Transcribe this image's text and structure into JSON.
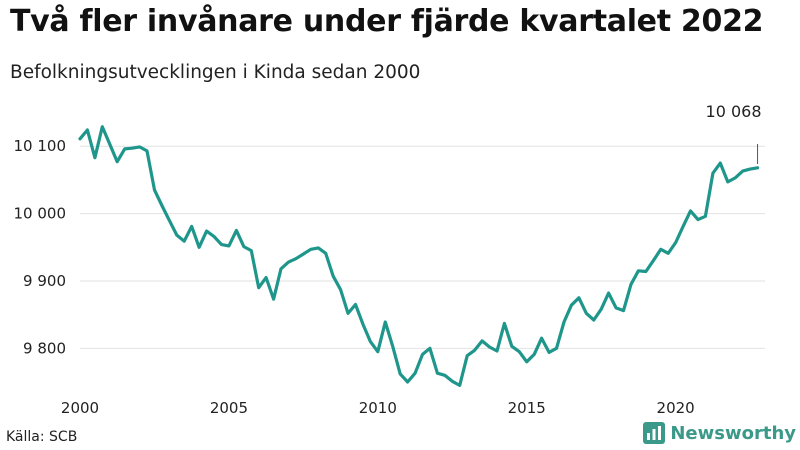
{
  "title": "Två fler invånare under fjärde kvartalet 2022",
  "subtitle": "Befolkningsutvecklingen i Kinda sedan 2000",
  "source": "Källa: SCB",
  "brand": {
    "name": "Newsworthy"
  },
  "colors": {
    "line": "#1f968b",
    "grid": "#e2e2e2",
    "brand": "#3a9988"
  },
  "chart_data": {
    "type": "line",
    "title": "Två fler invånare under fjärde kvartalet 2022",
    "subtitle": "Befolkningsutvecklingen i Kinda sedan 2000",
    "xlabel": "",
    "ylabel": "",
    "x_ticks": [
      2000,
      2005,
      2010,
      2015,
      2020
    ],
    "y_ticks": [
      9800,
      9900,
      10000,
      10100
    ],
    "y_tick_labels": [
      "9 800",
      "9 900",
      "10 000",
      "10 100"
    ],
    "ylim": [
      9750,
      10130
    ],
    "grid": true,
    "legend": "none",
    "last_value_label": "10 068",
    "series": [
      {
        "values": [
          [
            2000.0,
            10111
          ],
          [
            2000.25,
            10124
          ],
          [
            2000.5,
            10083
          ],
          [
            2000.75,
            10129
          ],
          [
            2001.0,
            10103
          ],
          [
            2001.25,
            10077
          ],
          [
            2001.5,
            10096
          ],
          [
            2001.75,
            10097
          ],
          [
            2002.0,
            10099
          ],
          [
            2002.25,
            10093
          ],
          [
            2002.5,
            10035
          ],
          [
            2002.75,
            10012
          ],
          [
            2003.0,
            9990
          ],
          [
            2003.25,
            9968
          ],
          [
            2003.5,
            9959
          ],
          [
            2003.75,
            9981
          ],
          [
            2004.0,
            9950
          ],
          [
            2004.25,
            9974
          ],
          [
            2004.5,
            9966
          ],
          [
            2004.75,
            9954
          ],
          [
            2005.0,
            9952
          ],
          [
            2005.25,
            9975
          ],
          [
            2005.5,
            9951
          ],
          [
            2005.75,
            9945
          ],
          [
            2006.0,
            9890
          ],
          [
            2006.25,
            9905
          ],
          [
            2006.5,
            9873
          ],
          [
            2006.75,
            9918
          ],
          [
            2007.0,
            9928
          ],
          [
            2007.25,
            9933
          ],
          [
            2007.5,
            9940
          ],
          [
            2007.75,
            9947
          ],
          [
            2008.0,
            9949
          ],
          [
            2008.25,
            9941
          ],
          [
            2008.5,
            9907
          ],
          [
            2008.75,
            9887
          ],
          [
            2009.0,
            9852
          ],
          [
            2009.25,
            9865
          ],
          [
            2009.5,
            9836
          ],
          [
            2009.75,
            9810
          ],
          [
            2010.0,
            9795
          ],
          [
            2010.25,
            9839
          ],
          [
            2010.5,
            9803
          ],
          [
            2010.75,
            9762
          ],
          [
            2011.0,
            9750
          ],
          [
            2011.25,
            9763
          ],
          [
            2011.5,
            9791
          ],
          [
            2011.75,
            9800
          ],
          [
            2012.0,
            9763
          ],
          [
            2012.25,
            9760
          ],
          [
            2012.5,
            9751
          ],
          [
            2012.75,
            9745
          ],
          [
            2013.0,
            9789
          ],
          [
            2013.25,
            9797
          ],
          [
            2013.5,
            9811
          ],
          [
            2013.75,
            9802
          ],
          [
            2014.0,
            9796
          ],
          [
            2014.25,
            9837
          ],
          [
            2014.5,
            9803
          ],
          [
            2014.75,
            9795
          ],
          [
            2015.0,
            9780
          ],
          [
            2015.25,
            9791
          ],
          [
            2015.5,
            9815
          ],
          [
            2015.75,
            9794
          ],
          [
            2016.0,
            9800
          ],
          [
            2016.25,
            9839
          ],
          [
            2016.5,
            9864
          ],
          [
            2016.75,
            9875
          ],
          [
            2017.0,
            9852
          ],
          [
            2017.25,
            9842
          ],
          [
            2017.5,
            9858
          ],
          [
            2017.75,
            9882
          ],
          [
            2018.0,
            9860
          ],
          [
            2018.25,
            9856
          ],
          [
            2018.5,
            9895
          ],
          [
            2018.75,
            9915
          ],
          [
            2019.0,
            9914
          ],
          [
            2019.25,
            9930
          ],
          [
            2019.5,
            9947
          ],
          [
            2019.75,
            9941
          ],
          [
            2020.0,
            9957
          ],
          [
            2020.25,
            9981
          ],
          [
            2020.5,
            10004
          ],
          [
            2020.75,
            9991
          ],
          [
            2021.0,
            9996
          ],
          [
            2021.25,
            10060
          ],
          [
            2021.5,
            10075
          ],
          [
            2021.75,
            10047
          ],
          [
            2022.0,
            10053
          ],
          [
            2022.25,
            10063
          ],
          [
            2022.5,
            10066
          ],
          [
            2022.75,
            10068
          ]
        ]
      }
    ]
  }
}
